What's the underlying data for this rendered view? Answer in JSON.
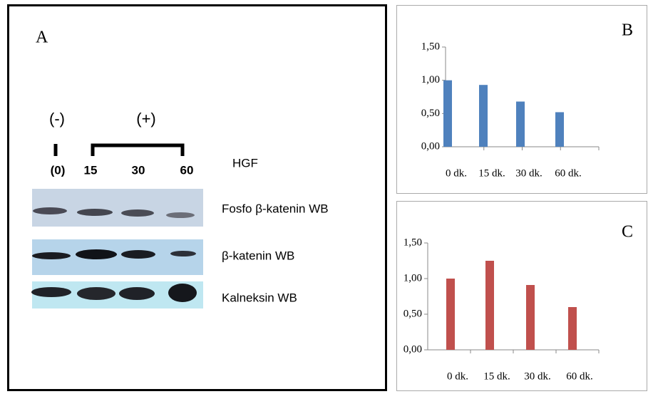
{
  "panel_a": {
    "label": "A",
    "group_negative": "(-)",
    "group_positive": "(+)",
    "lanes": [
      "(0)",
      "15",
      "30",
      "60"
    ],
    "treatment": "HGF",
    "blots": [
      "Fosfo β-katenin WB",
      "β-katenin WB",
      "Kalneksin WB"
    ]
  },
  "chart_data": [
    {
      "type": "bar",
      "panel_label": "B",
      "categories": [
        "0 dk.",
        "15 dk.",
        "30 dk.",
        "60 dk."
      ],
      "values": [
        1.0,
        0.93,
        0.68,
        0.52
      ],
      "color": "#4f81bd",
      "ylim": [
        0,
        1.5
      ],
      "yticks": [
        {
          "value": 0,
          "label": "0,00"
        },
        {
          "value": 0.5,
          "label": "0,50"
        },
        {
          "value": 1,
          "label": "1,00"
        },
        {
          "value": 1.5,
          "label": "1,50"
        }
      ]
    },
    {
      "type": "bar",
      "panel_label": "C",
      "categories": [
        "0 dk.",
        "15 dk.",
        "30 dk.",
        "60 dk."
      ],
      "values": [
        1.0,
        1.25,
        0.91,
        0.6
      ],
      "color": "#c0504d",
      "ylim": [
        0,
        1.5
      ],
      "yticks": [
        {
          "value": 0,
          "label": "0,00"
        },
        {
          "value": 0.5,
          "label": "0,50"
        },
        {
          "value": 1,
          "label": "1,00"
        },
        {
          "value": 1.5,
          "label": "1,50"
        }
      ]
    }
  ]
}
